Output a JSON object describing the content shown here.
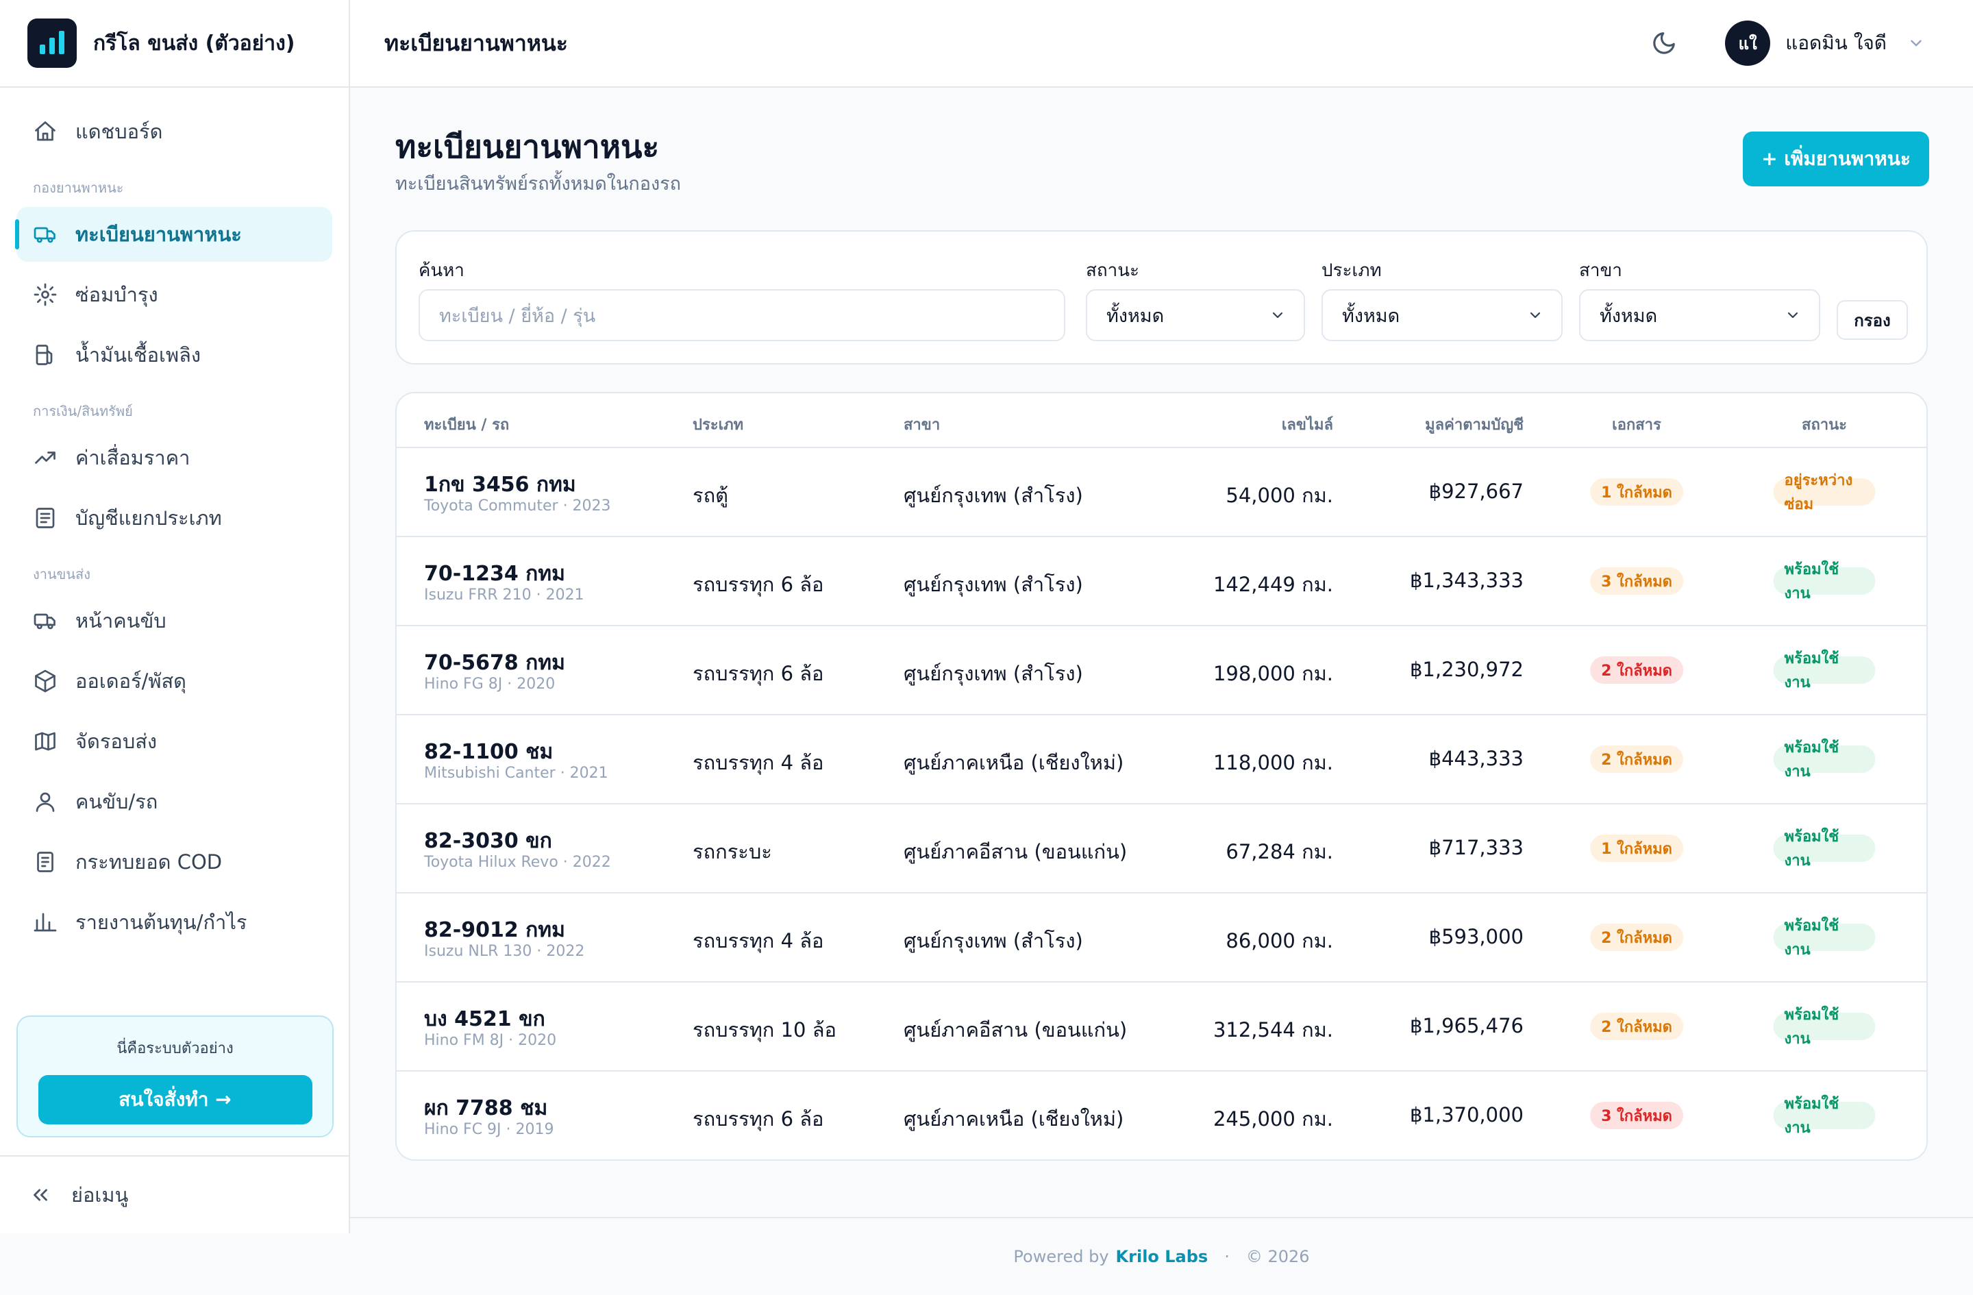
{
  "brand": {
    "title": "กรีโล ขนส่ง (ตัวอย่าง)"
  },
  "topbar": {
    "title": "ทะเบียนยานพาหนะ",
    "user_initials": "แใ",
    "user_name": "แอดมิน ใจดี"
  },
  "sidebar": {
    "items": [
      {
        "label": "แดชบอร์ด",
        "icon": "home-icon"
      },
      {
        "section": "กองยานพาหนะ"
      },
      {
        "label": "ทะเบียนยานพาหนะ",
        "icon": "truck-icon",
        "active": true
      },
      {
        "label": "ซ่อมบำรุง",
        "icon": "gear-icon"
      },
      {
        "label": "น้ำมันเชื้อเพลิง",
        "icon": "fuel-icon"
      },
      {
        "section": "การเงิน/สินทรัพย์"
      },
      {
        "label": "ค่าเสื่อมราคา",
        "icon": "trend-icon"
      },
      {
        "label": "บัญชีแยกประเภท",
        "icon": "ledger-icon"
      },
      {
        "section": "งานขนส่ง"
      },
      {
        "label": "หน้าคนขับ",
        "icon": "truck-icon"
      },
      {
        "label": "ออเดอร์/พัสดุ",
        "icon": "box-icon"
      },
      {
        "label": "จัดรอบส่ง",
        "icon": "map-icon"
      },
      {
        "label": "คนขับ/รถ",
        "icon": "user-icon"
      },
      {
        "label": "กระทบยอด COD",
        "icon": "receipt-icon"
      },
      {
        "label": "รายงานต้นทุน/กำไร",
        "icon": "bar-chart-icon"
      }
    ],
    "promo_text": "นี่คือระบบตัวอย่าง",
    "promo_button": "สนใจสั่งทำ →",
    "collapse_label": "ย่อเมนู"
  },
  "main": {
    "title": "ทะเบียนยานพาหนะ",
    "subtitle": "ทะเบียนสินทรัพย์รถทั้งหมดในกองรถ",
    "add_button": "+ เพิ่มยานพาหนะ"
  },
  "filters": {
    "search_label": "ค้นหา",
    "search_placeholder": "ทะเบียน / ยี่ห้อ / รุ่น",
    "status_label": "สถานะ",
    "status_value": "ทั้งหมด",
    "type_label": "ประเภท",
    "type_value": "ทั้งหมด",
    "branch_label": "สาขา",
    "branch_value": "ทั้งหมด",
    "filter_button": "กรอง"
  },
  "table": {
    "headers": [
      "ทะเบียน / รถ",
      "ประเภท",
      "สาขา",
      "เลขไมล์",
      "มูลค่าตามบัญชี",
      "เอกสาร",
      "สถานะ"
    ],
    "rows": [
      {
        "plate": "1กข 3456 กทม",
        "model": "Toyota Commuter · 2023",
        "type": "รถตู้",
        "branch": "ศูนย์กรุงเทพ (สำโรง)",
        "mileage": "54,000 กม.",
        "value": "฿927,667",
        "docs": "1 ใกล้หมด",
        "docs_tone": "orange",
        "status": "อยู่ระหว่างซ่อม",
        "status_tone": "orange"
      },
      {
        "plate": "70-1234 กทม",
        "model": "Isuzu FRR 210 · 2021",
        "type": "รถบรรทุก 6 ล้อ",
        "branch": "ศูนย์กรุงเทพ (สำโรง)",
        "mileage": "142,449 กม.",
        "value": "฿1,343,333",
        "docs": "3 ใกล้หมด",
        "docs_tone": "orange",
        "status": "พร้อมใช้งาน",
        "status_tone": "green"
      },
      {
        "plate": "70-5678 กทม",
        "model": "Hino FG 8J · 2020",
        "type": "รถบรรทุก 6 ล้อ",
        "branch": "ศูนย์กรุงเทพ (สำโรง)",
        "mileage": "198,000 กม.",
        "value": "฿1,230,972",
        "docs": "2 ใกล้หมด",
        "docs_tone": "red",
        "status": "พร้อมใช้งาน",
        "status_tone": "green"
      },
      {
        "plate": "82-1100 ชม",
        "model": "Mitsubishi Canter · 2021",
        "type": "รถบรรทุก 4 ล้อ",
        "branch": "ศูนย์ภาคเหนือ (เชียงใหม่)",
        "mileage": "118,000 กม.",
        "value": "฿443,333",
        "docs": "2 ใกล้หมด",
        "docs_tone": "orange",
        "status": "พร้อมใช้งาน",
        "status_tone": "green"
      },
      {
        "plate": "82-3030 ขก",
        "model": "Toyota Hilux Revo · 2022",
        "type": "รถกระบะ",
        "branch": "ศูนย์ภาคอีสาน (ขอนแก่น)",
        "mileage": "67,284 กม.",
        "value": "฿717,333",
        "docs": "1 ใกล้หมด",
        "docs_tone": "orange",
        "status": "พร้อมใช้งาน",
        "status_tone": "green"
      },
      {
        "plate": "82-9012 กทม",
        "model": "Isuzu NLR 130 · 2022",
        "type": "รถบรรทุก 4 ล้อ",
        "branch": "ศูนย์กรุงเทพ (สำโรง)",
        "mileage": "86,000 กม.",
        "value": "฿593,000",
        "docs": "2 ใกล้หมด",
        "docs_tone": "orange",
        "status": "พร้อมใช้งาน",
        "status_tone": "green"
      },
      {
        "plate": "บง 4521 ขก",
        "model": "Hino FM 8J · 2020",
        "type": "รถบรรทุก 10 ล้อ",
        "branch": "ศูนย์ภาคอีสาน (ขอนแก่น)",
        "mileage": "312,544 กม.",
        "value": "฿1,965,476",
        "docs": "2 ใกล้หมด",
        "docs_tone": "orange",
        "status": "พร้อมใช้งาน",
        "status_tone": "green"
      },
      {
        "plate": "ผก 7788 ชม",
        "model": "Hino FC 9J · 2019",
        "type": "รถบรรทุก 6 ล้อ",
        "branch": "ศูนย์ภาคเหนือ (เชียงใหม่)",
        "mileage": "245,000 กม.",
        "value": "฿1,370,000",
        "docs": "3 ใกล้หมด",
        "docs_tone": "red",
        "status": "พร้อมใช้งาน",
        "status_tone": "green"
      }
    ]
  },
  "footer": {
    "powered_by": "Powered by",
    "brand": "Krilo Labs",
    "separator": "·",
    "copyright": "© 2026"
  },
  "colors": {
    "accent": "#06b6d4",
    "text": "#0f172a",
    "muted": "#64748b"
  }
}
